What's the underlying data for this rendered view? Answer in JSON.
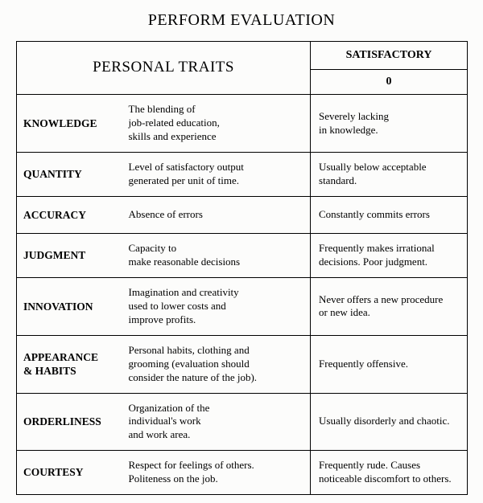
{
  "title": "PERFORM EVALUATION",
  "headers": {
    "traits": "PERSONAL TRAITS",
    "satisfactory": "SATISFACTORY",
    "score": "0"
  },
  "rows": [
    {
      "name": "KNOWLEDGE",
      "desc": "The blending of\njob-related education,\nskills and experience",
      "sat": "Severely lacking\nin knowledge."
    },
    {
      "name": "QUANTITY",
      "desc": "Level of satisfactory output\ngenerated per unit of time.",
      "sat": "Usually below acceptable\nstandard."
    },
    {
      "name": "ACCURACY",
      "desc": "Absence of errors",
      "sat": "Constantly commits errors"
    },
    {
      "name": "JUDGMENT",
      "desc": "Capacity to\nmake reasonable decisions",
      "sat": "Frequently makes irrational\ndecisions. Poor judgment."
    },
    {
      "name": "INNOVATION",
      "desc": "Imagination and creativity\n used to lower costs and\nimprove profits.",
      "sat": "Never offers a new procedure\nor new idea."
    },
    {
      "name": "APPEARANCE\n& HABITS",
      "desc": "Personal habits, clothing and\ngrooming (evaluation should\nconsider the nature of the job).",
      "sat": "Frequently offensive."
    },
    {
      "name": "ORDERLINESS",
      "desc": "Organization of the\nindividual's work\nand work area.",
      "sat": "Usually disorderly and chaotic."
    },
    {
      "name": "COURTESY",
      "desc": " Respect for feelings of others.\n  Politeness on the job.",
      "sat": "Frequently rude. Causes\nnoticeable discomfort to others."
    }
  ]
}
